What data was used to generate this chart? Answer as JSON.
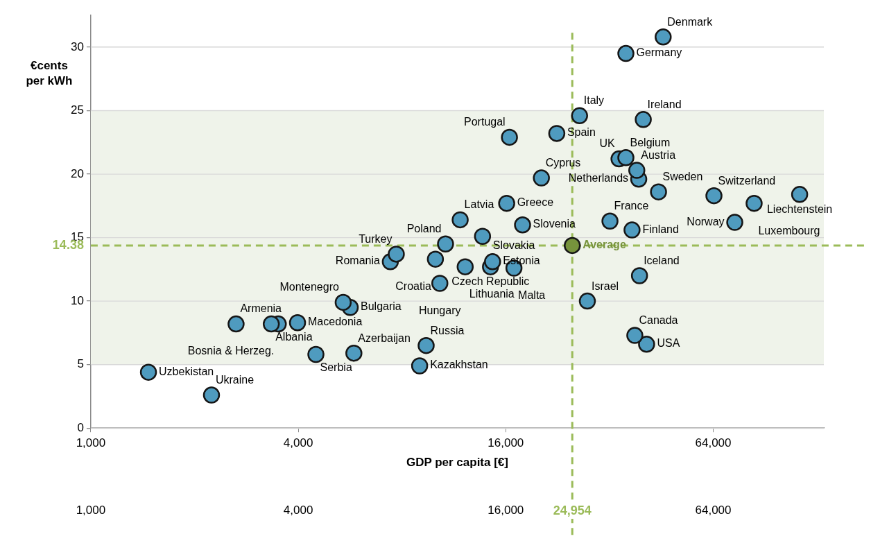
{
  "chart_data": {
    "type": "scatter",
    "xlabel": "GDP per capita [€]",
    "ylabel": "€cents per kWh",
    "log": "x",
    "grid": "y",
    "legend": false,
    "marker": "circle",
    "xlim": [
      1000,
      134000
    ],
    "xticks": [
      {
        "value": 1000,
        "label": "1,000"
      },
      {
        "value": 4000,
        "label": "4,000"
      },
      {
        "value": 16000,
        "label": "16,000"
      },
      {
        "value": 64000,
        "label": "64,000"
      }
    ],
    "ylim": [
      0,
      32.5
    ],
    "yticks": [
      0,
      5,
      10,
      15,
      20,
      25,
      30
    ],
    "series": [
      {
        "color": "#4f9bbf",
        "x": [
          45800,
          35700,
          40100,
          26200,
          16400,
          22500,
          35700,
          34100,
          38400,
          38900,
          20300,
          44400,
          64300,
          114000,
          84100,
          73900,
          16100,
          11800,
          17900,
          13700,
          32100,
          37200,
          10700,
          7700,
          7400,
          10000,
          12200,
          14650,
          14450,
          16900,
          39100,
          10300,
          27600,
          5400,
          5660,
          2640,
          3340,
          3500,
          3980,
          37900,
          41000,
          9400,
          5800,
          4500,
          9000,
          1470,
          2240
        ],
        "values": [
          30.8,
          29.5,
          24.3,
          24.6,
          22.9,
          23.2,
          21.3,
          21.2,
          20.3,
          19.6,
          19.7,
          18.6,
          18.3,
          18.4,
          17.7,
          16.2,
          17.7,
          16.4,
          16.0,
          15.1,
          16.3,
          15.6,
          14.5,
          13.7,
          13.1,
          13.3,
          12.7,
          13.1,
          12.7,
          12.6,
          12.0,
          11.4,
          10.0,
          9.9,
          9.5,
          8.2,
          8.2,
          8.2,
          8.3,
          7.3,
          6.6,
          6.5,
          5.9,
          5.8,
          4.9,
          4.4,
          2.6
        ]
      },
      {
        "color": "#77933c",
        "x": [
          24954
        ],
        "values": [
          14.38
        ]
      }
    ],
    "annotations": [
      "1,000",
      "4,000",
      "16,000",
      "64,000",
      {
        "text": "Denmark",
        "x": 45800,
        "y": 30.8
      },
      {
        "text": "Germany",
        "x": 35700,
        "y": 29.5
      },
      {
        "text": "Ireland",
        "x": 40100,
        "y": 24.3
      },
      {
        "text": "Italy",
        "x": 26200,
        "y": 24.6
      },
      {
        "text": "Portugal",
        "x": 16400,
        "y": 22.9
      },
      {
        "text": "Spain",
        "x": 22500,
        "y": 23.2
      },
      {
        "text": "Belgium",
        "x": 35700,
        "y": 21.3
      },
      {
        "text": "UK",
        "x": 34100,
        "y": 21.2
      },
      {
        "text": "Austria",
        "x": 38400,
        "y": 20.3
      },
      {
        "text": "Netherlands",
        "x": 38900,
        "y": 19.6
      },
      {
        "text": "Cyprus",
        "x": 20300,
        "y": 19.7
      },
      {
        "text": "Sweden",
        "x": 44400,
        "y": 18.6
      },
      {
        "text": "Switzerland",
        "x": 64300,
        "y": 18.3
      },
      {
        "text": "Liechtenstein",
        "x": 114000,
        "y": 18.4
      },
      {
        "text": "Luxembourg",
        "x": 84100,
        "y": 17.7
      },
      {
        "text": "Norway",
        "x": 73900,
        "y": 16.2
      },
      {
        "text": "Greece",
        "x": 16100,
        "y": 17.7
      },
      {
        "text": "Latvia",
        "x": 11800,
        "y": 16.4
      },
      {
        "text": "Slovenia",
        "x": 17900,
        "y": 16.0
      },
      {
        "text": "Slovakia",
        "x": 13700,
        "y": 15.1
      },
      {
        "text": "France",
        "x": 32100,
        "y": 16.3
      },
      {
        "text": "Finland",
        "x": 37200,
        "y": 15.6
      },
      {
        "text": "Poland",
        "x": 10700,
        "y": 14.5
      },
      {
        "text": "Turkey",
        "x": 7700,
        "y": 13.7
      },
      {
        "text": "Romania",
        "x": 7400,
        "y": 13.1
      },
      {
        "text": "Croatia",
        "x": 10000,
        "y": 13.3
      },
      {
        "text": "Lithuania",
        "x": 12200,
        "y": 12.7
      },
      {
        "text": "Estonia",
        "x": 14650,
        "y": 13.1
      },
      {
        "text": "Czech Republic",
        "x": 14450,
        "y": 12.7
      },
      {
        "text": "Malta",
        "x": 16900,
        "y": 12.6
      },
      {
        "text": "Iceland",
        "x": 39100,
        "y": 12.0
      },
      {
        "text": "Hungary",
        "x": 10300,
        "y": 11.4
      },
      {
        "text": "Israel",
        "x": 27600,
        "y": 10.0
      },
      {
        "text": "Montenegro",
        "x": 5400,
        "y": 9.9
      },
      {
        "text": "Bulgaria",
        "x": 5660,
        "y": 9.5
      },
      {
        "text": "Armenia",
        "x": 2640,
        "y": 8.2
      },
      {
        "text": "Albania",
        "x": 3340,
        "y": 8.2
      },
      {
        "text": "Bosnia & Herzeg.",
        "x": 3500,
        "y": 8.2
      },
      {
        "text": "Macedonia",
        "x": 3980,
        "y": 8.3
      },
      {
        "text": "Canada",
        "x": 37900,
        "y": 7.3
      },
      {
        "text": "USA",
        "x": 41000,
        "y": 6.6
      },
      {
        "text": "Russia",
        "x": 9400,
        "y": 6.5
      },
      {
        "text": "Azerbaijan",
        "x": 5800,
        "y": 5.9
      },
      {
        "text": "Serbia",
        "x": 4500,
        "y": 5.8
      },
      {
        "text": "Kazakhstan",
        "x": 9000,
        "y": 4.9
      },
      {
        "text": "Uzbekistan",
        "x": 1470,
        "y": 4.4
      },
      {
        "text": "Ukraine",
        "x": 2240,
        "y": 2.6
      },
      {
        "text": "Average",
        "x": 24954,
        "y": 14.38
      }
    ],
    "ref_lines": [
      {
        "axis": "y",
        "value": 14.38,
        "label": "14.38",
        "color": "#9bbb59",
        "line_style": "dashed"
      },
      {
        "axis": "x",
        "value": 24954,
        "label": "24,954",
        "color": "#9bbb59",
        "line_style": "dashed"
      }
    ],
    "bands": [
      {
        "axis": "y",
        "from": 5,
        "to": 25,
        "color": "#eff3ea"
      }
    ]
  }
}
